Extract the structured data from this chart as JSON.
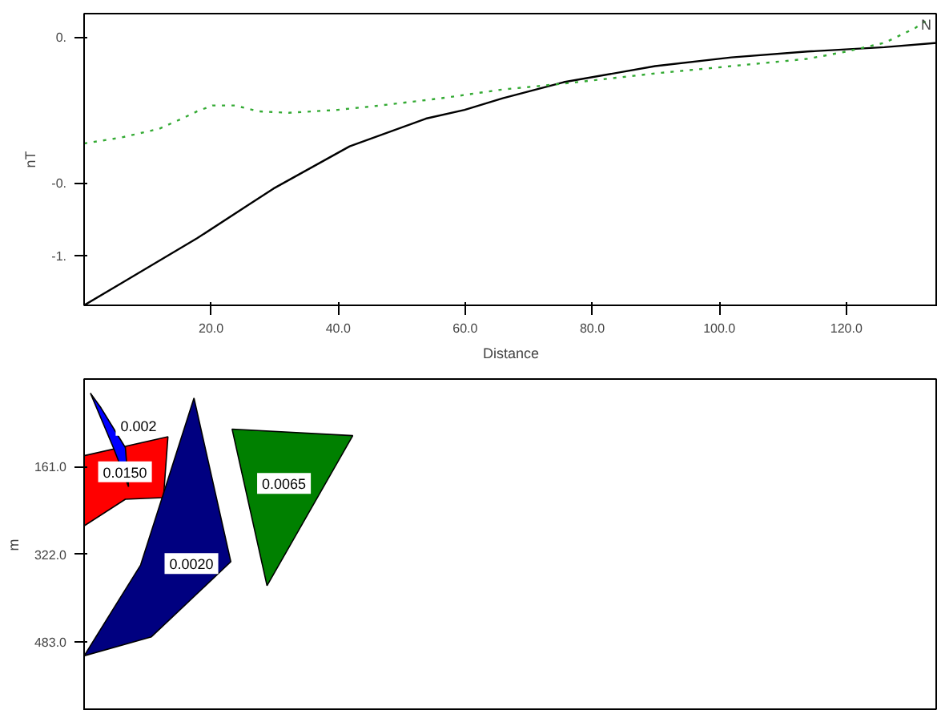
{
  "chart_data": [
    {
      "type": "line",
      "xlabel": "Distance",
      "ylabel": "nT",
      "xlim": [
        0,
        134.4
      ],
      "ylim": [
        -1.34,
        0.66
      ],
      "xticks": [
        {
          "value": 20,
          "label": "20.0"
        },
        {
          "value": 40,
          "label": "40.0"
        },
        {
          "value": 60,
          "label": "60.0"
        },
        {
          "value": 80,
          "label": "80.0"
        },
        {
          "value": 100,
          "label": "100.0"
        },
        {
          "value": 120,
          "label": "120.0"
        }
      ],
      "yticks": [
        {
          "value": 0.5,
          "label": "0."
        },
        {
          "value": -0.5,
          "label": "-0."
        },
        {
          "value": -1.0,
          "label": "-1."
        }
      ],
      "grid": false,
      "annotations": [
        "N"
      ],
      "series": [
        {
          "color": "#000000",
          "line_style": "solid",
          "x": [
            0,
            5.8,
            17.8,
            29.8,
            41.8,
            53.8,
            59.9,
            65.9,
            75.5,
            89.9,
            101.9,
            113.9,
            126,
            134.4
          ],
          "values": [
            -1.34,
            -1.19,
            -0.88,
            -0.54,
            -0.25,
            -0.06,
            0,
            0.08,
            0.19,
            0.3,
            0.36,
            0.4,
            0.43,
            0.46
          ]
        },
        {
          "color": "#33aa33",
          "line_style": "dotted",
          "x": [
            0,
            5.8,
            11.8,
            15.4,
            17.8,
            20.2,
            23.8,
            27.4,
            32.2,
            39.9,
            46.6,
            56.3,
            65.9,
            75.5,
            89.9,
            101.9,
            113.9,
            120,
            126,
            130.8,
            133.2
          ],
          "values": [
            -0.23,
            -0.19,
            -0.13,
            -0.06,
            -0.01,
            0.03,
            0.03,
            -0.01,
            -0.02,
            0,
            0.03,
            0.08,
            0.14,
            0.18,
            0.25,
            0.3,
            0.35,
            0.4,
            0.46,
            0.56,
            0.63
          ]
        }
      ]
    },
    {
      "type": "area",
      "ylabel": "m",
      "xlim": [
        0,
        134.4
      ],
      "ylim": [
        610,
        0
      ],
      "yticks": [
        {
          "value": 161,
          "label": "161.0"
        },
        {
          "value": 322,
          "label": "322.0"
        },
        {
          "value": 483,
          "label": "483.0"
        }
      ],
      "tick_labels": "y",
      "grid": false,
      "annotations": [
        "0.0150",
        "0.002",
        "0.0020",
        "0.0065"
      ],
      "series": [
        {
          "color": "#ff0000",
          "x": [
            0,
            13.2,
            12.5,
            6.5,
            0
          ],
          "values": [
            141,
            106,
            218,
            221,
            270
          ]
        },
        {
          "color": "#0000ff",
          "x": [
            1.0,
            2.6,
            6.5,
            7.0,
            4.6
          ],
          "values": [
            26,
            52,
            126,
            198,
            126
          ]
        },
        {
          "color": "#000080",
          "x": [
            17.3,
            23.1,
            10.6,
            0,
            8.9
          ],
          "values": [
            35,
            336,
            474,
            509,
            342
          ]
        },
        {
          "color": "#008000",
          "x": [
            23.3,
            42.3,
            28.8
          ],
          "values": [
            92,
            104,
            380
          ]
        }
      ]
    }
  ]
}
